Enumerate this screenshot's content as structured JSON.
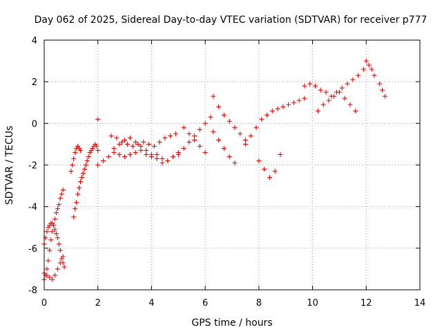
{
  "chart_data": {
    "type": "scatter",
    "title": "Day 062 of 2025, Sidereal Day-to-day VTEC variation (SDTVAR) for receiver p777",
    "xlabel": "GPS time / hours",
    "ylabel": "SDTVAR / TECUs",
    "xlim": [
      0,
      14
    ],
    "ylim": [
      -8,
      4
    ],
    "xticks": [
      "0",
      "2",
      "4",
      "6",
      "8",
      "10",
      "12",
      "14"
    ],
    "yticks": [
      "-8",
      "-6",
      "-4",
      "-2",
      "0",
      "2",
      "4"
    ],
    "grid": true,
    "marker": "+",
    "series_color": "#ff0000",
    "series": [
      {
        "name": "SDTVAR",
        "x": [
          0.0,
          0.05,
          0.1,
          0.15,
          0.2,
          0.25,
          0.3,
          0.35,
          0.4,
          0.45,
          0.5,
          0.55,
          0.6,
          0.65,
          0.7,
          0.0,
          0.05,
          0.1,
          0.15,
          0.2,
          0.25,
          0.3,
          0.35,
          0.4,
          0.45,
          0.5,
          0.55,
          0.6,
          0.65,
          0.7,
          0.75,
          0.0,
          0.1,
          0.2,
          0.3,
          0.4,
          0.5,
          0.6,
          0.7,
          1.1,
          1.15,
          1.2,
          1.25,
          1.3,
          1.35,
          1.4,
          1.45,
          1.5,
          1.55,
          1.6,
          1.65,
          1.7,
          1.75,
          1.8,
          1.85,
          1.9,
          1.95,
          2.0,
          1.0,
          1.05,
          1.1,
          1.15,
          1.2,
          1.25,
          1.3,
          1.35,
          2.0,
          2.2,
          2.4,
          2.6,
          2.8,
          3.0,
          3.2,
          3.4,
          3.6,
          3.8,
          4.0,
          4.2,
          4.4,
          4.6,
          4.8,
          5.0,
          2.5,
          2.7,
          2.9,
          3.1,
          3.3,
          3.5,
          3.7,
          3.9,
          4.1,
          4.3,
          4.5,
          4.7,
          4.9,
          2.6,
          2.8,
          3.0,
          3.2,
          3.4,
          3.6,
          3.8,
          4.0,
          4.2,
          4.4,
          5.0,
          5.2,
          5.4,
          5.6,
          5.8,
          6.0,
          6.2,
          5.2,
          5.4,
          5.6,
          5.8,
          6.0,
          6.3,
          6.5,
          6.7,
          6.9,
          7.1,
          7.3,
          7.5,
          6.3,
          6.5,
          6.7,
          6.9,
          7.1,
          7.5,
          7.7,
          7.9,
          8.1,
          8.3,
          8.5,
          8.7,
          8.9,
          9.1,
          9.3,
          9.5,
          9.7,
          8.0,
          8.2,
          8.4,
          8.6,
          8.8,
          9.7,
          9.9,
          10.1,
          10.3,
          10.5,
          10.7,
          10.9,
          11.1,
          11.3,
          11.5,
          11.7,
          11.9,
          10.2,
          10.4,
          10.6,
          10.8,
          11.0,
          11.2,
          11.4,
          11.6,
          12.0,
          12.1,
          12.2,
          12.3,
          12.5,
          12.6,
          12.7,
          2.0
        ],
        "y": [
          -7.5,
          -7.3,
          -7.0,
          -6.6,
          -6.1,
          -5.6,
          -5.2,
          -4.9,
          -4.6,
          -4.3,
          -4.1,
          -3.9,
          -3.6,
          -3.4,
          -3.2,
          -5.8,
          -5.5,
          -5.2,
          -5.0,
          -4.9,
          -4.8,
          -4.8,
          -4.9,
          -5.1,
          -5.3,
          -5.5,
          -5.8,
          -6.1,
          -6.5,
          -6.7,
          -6.9,
          -7.2,
          -7.3,
          -7.4,
          -7.5,
          -7.3,
          -7.0,
          -6.7,
          -6.4,
          -4.5,
          -4.1,
          -3.8,
          -3.4,
          -3.1,
          -2.8,
          -2.6,
          -2.4,
          -2.2,
          -2.0,
          -1.8,
          -1.6,
          -1.4,
          -1.3,
          -1.2,
          -1.1,
          -1.0,
          -1.1,
          -1.3,
          -2.3,
          -2.0,
          -1.7,
          -1.4,
          -1.2,
          -1.1,
          -1.2,
          -1.3,
          -2.0,
          -1.8,
          -1.6,
          -1.4,
          -1.5,
          -1.6,
          -1.5,
          -1.4,
          -1.3,
          -1.5,
          -1.6,
          -1.5,
          -1.7,
          -1.8,
          -1.6,
          -1.4,
          -0.6,
          -0.7,
          -0.9,
          -1.0,
          -1.1,
          -1.0,
          -0.9,
          -1.0,
          -1.1,
          -0.9,
          -0.7,
          -0.6,
          -0.5,
          -1.2,
          -1.0,
          -0.8,
          -0.7,
          -0.9,
          -1.1,
          -1.3,
          -1.5,
          -1.7,
          -1.9,
          -1.5,
          -1.2,
          -0.9,
          -0.6,
          -0.3,
          0.0,
          0.3,
          -0.2,
          -0.5,
          -0.8,
          -1.1,
          -1.4,
          1.3,
          0.8,
          0.4,
          0.1,
          -0.2,
          -0.5,
          -0.8,
          -0.4,
          -0.8,
          -1.2,
          -1.6,
          -1.9,
          -1.0,
          -0.6,
          -0.2,
          0.2,
          0.4,
          0.6,
          0.7,
          0.8,
          0.9,
          1.0,
          1.1,
          1.2,
          -1.8,
          -2.2,
          -2.6,
          -2.3,
          -1.5,
          1.8,
          1.9,
          1.8,
          1.6,
          1.5,
          1.3,
          1.5,
          1.7,
          1.9,
          2.1,
          2.3,
          2.6,
          0.6,
          0.9,
          1.1,
          1.3,
          1.5,
          1.2,
          0.9,
          0.6,
          3.0,
          2.8,
          2.6,
          2.3,
          1.9,
          1.6,
          1.3,
          0.2
        ]
      }
    ]
  }
}
